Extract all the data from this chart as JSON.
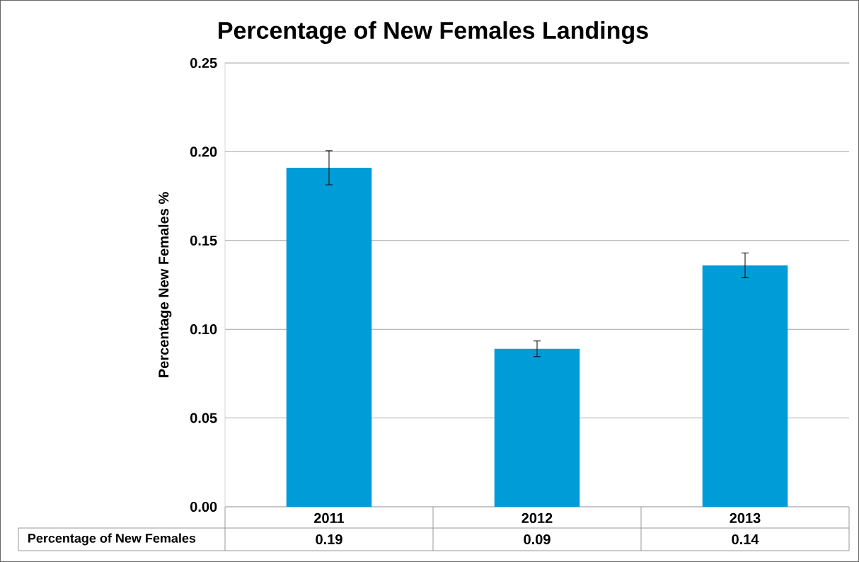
{
  "chart_data": {
    "type": "bar",
    "title": "Percentage of New Females Landings",
    "ylabel": "Percentage New Females %",
    "categories": [
      "2011",
      "2012",
      "2013"
    ],
    "series": [
      {
        "name": "Percentage of New Females",
        "color": "#009cd7",
        "values": [
          0.191,
          0.089,
          0.136
        ],
        "errors": [
          0.0096,
          0.0044,
          0.007
        ],
        "value_labels": [
          "0.19",
          "0.09",
          "0.14"
        ]
      }
    ],
    "ylim": [
      0,
      0.25
    ],
    "yticks": [
      {
        "value": 0,
        "label": "0.00"
      },
      {
        "value": 0.05,
        "label": "0.05"
      },
      {
        "value": 0.1,
        "label": "0.10"
      },
      {
        "value": 0.15,
        "label": "0.15"
      },
      {
        "value": 0.2,
        "label": "0.20"
      },
      0.25
    ],
    "grid": "y"
  }
}
